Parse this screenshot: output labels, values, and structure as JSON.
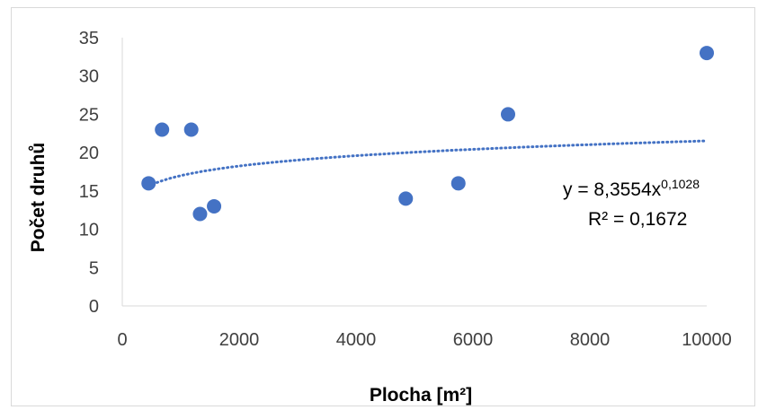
{
  "chart_data": {
    "type": "scatter",
    "title": "",
    "xlabel": "Plocha [m²]",
    "ylabel": "Počet druhů",
    "xlim": [
      0,
      10000
    ],
    "ylim": [
      0,
      35
    ],
    "x_ticks": [
      0,
      2000,
      4000,
      6000,
      8000,
      10000
    ],
    "y_ticks": [
      0,
      5,
      10,
      15,
      20,
      25,
      30,
      35
    ],
    "grid": false,
    "legend": "none",
    "marker_color": "#4472C4",
    "series": [
      {
        "points": [
          {
            "x": 450,
            "y": 16
          },
          {
            "x": 680,
            "y": 23
          },
          {
            "x": 1180,
            "y": 23
          },
          {
            "x": 1330,
            "y": 12
          },
          {
            "x": 1570,
            "y": 13
          },
          {
            "x": 4850,
            "y": 14
          },
          {
            "x": 5750,
            "y": 16
          },
          {
            "x": 6600,
            "y": 25
          },
          {
            "x": 10000,
            "y": 33
          }
        ]
      }
    ],
    "trendline": {
      "type": "power",
      "a": 8.3554,
      "b": 0.1028,
      "x_range": [
        450,
        10000
      ],
      "style": "dotted",
      "color": "#4472C4",
      "equation_prefix": "y = 8,3554x",
      "equation_exponent": "0,1028",
      "r2_label": "R² = 0,1672"
    }
  }
}
